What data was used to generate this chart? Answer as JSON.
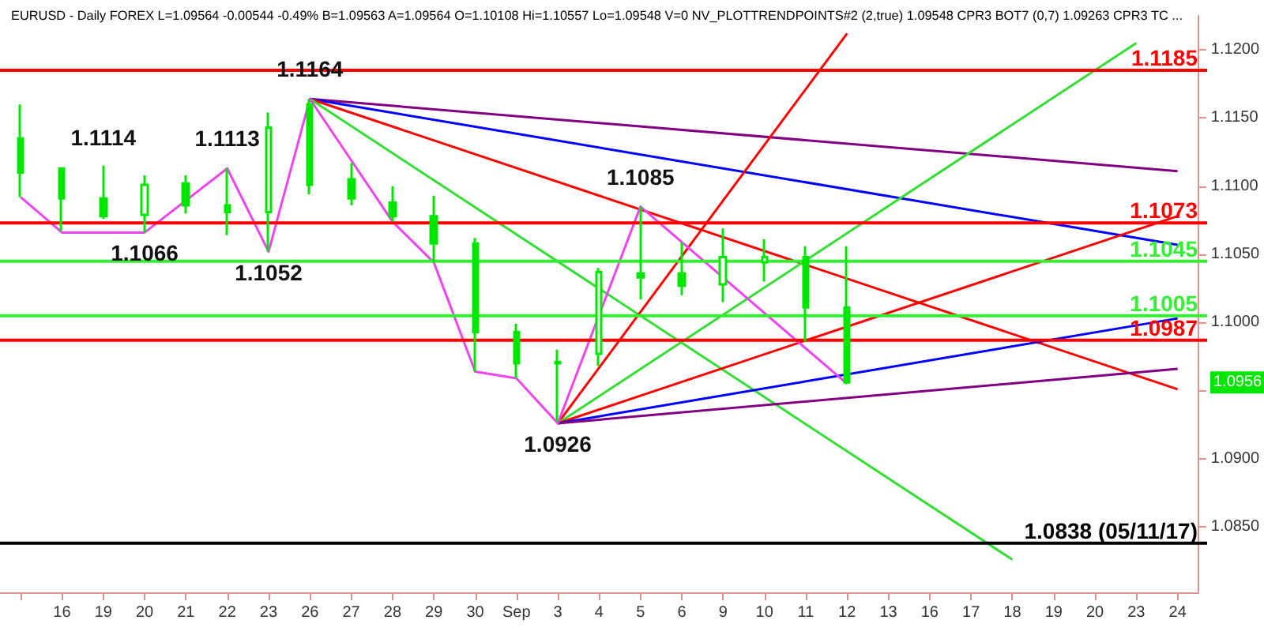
{
  "chart_data": {
    "type": "candlestick",
    "title": "EURUSD - Daily FOREX L=1.09564 -0.00544 -0.49% B=1.09563 A=1.09564 O=1.10108 Hi=1.10557 Lo=1.09548 V=0 NV_PLOTTRENDPOINTS#2 (2,true) 1.09548 CPR3 BOT7 (0,7) 1.09263 CPR3 TC ...",
    "categories": [
      null,
      "16",
      "19",
      "20",
      "21",
      "22",
      "23",
      "26",
      "27",
      "28",
      "29",
      "30",
      "Sep",
      "3",
      "4",
      "5",
      "6",
      "9",
      "10",
      "11",
      "12",
      "13",
      "16",
      "17",
      "18",
      "19",
      "20",
      "23",
      "24"
    ],
    "color": "#00e600",
    "ohlc": [
      [
        1.1135,
        1.116,
        1.1092,
        1.111
      ],
      [
        1.1113,
        1.1113,
        1.1067,
        1.1091
      ],
      [
        1.1091,
        1.1115,
        1.1076,
        1.1078
      ],
      [
        1.1079,
        1.1108,
        1.1066,
        1.1101
      ],
      [
        1.1102,
        1.1108,
        1.108,
        1.1086
      ],
      [
        1.1086,
        1.1113,
        1.1064,
        1.1081
      ],
      [
        1.1081,
        1.1154,
        1.1052,
        1.1143
      ],
      [
        1.116,
        1.1164,
        1.1094,
        1.1101
      ],
      [
        1.1105,
        1.1117,
        1.1086,
        1.1091
      ],
      [
        1.1088,
        1.11,
        1.1074,
        1.1078
      ],
      [
        1.1078,
        1.1093,
        1.1044,
        1.1058
      ],
      [
        1.1058,
        1.1062,
        1.0964,
        1.0993
      ],
      [
        1.0993,
        1.0999,
        1.0959,
        1.097
      ],
      [
        1.097,
        1.098,
        1.0927,
        1.0971
      ],
      [
        1.0977,
        1.104,
        1.0968,
        1.1037
      ],
      [
        1.1036,
        1.1085,
        1.1017,
        1.1033
      ],
      [
        1.1036,
        1.1059,
        1.102,
        1.1027
      ],
      [
        1.1028,
        1.1069,
        1.1015,
        1.1048
      ],
      [
        1.1044,
        1.1061,
        1.103,
        1.1048
      ],
      [
        1.1048,
        1.1056,
        1.0986,
        1.1011
      ],
      [
        1.1011,
        1.1056,
        1.0955,
        1.0956
      ],
      null,
      null,
      null,
      null,
      null,
      null,
      null,
      null
    ],
    "series": [
      {
        "type": "line",
        "color": "#800080",
        "values": [
          null,
          null,
          null,
          null,
          null,
          null,
          null,
          1.1164,
          null,
          null,
          null,
          null,
          null,
          null,
          null,
          null,
          null,
          null,
          null,
          null,
          null,
          null,
          null,
          null,
          null,
          null,
          null,
          null,
          1.1111
        ]
      },
      {
        "type": "line",
        "color": "#0000ff",
        "values": [
          null,
          null,
          null,
          null,
          null,
          null,
          null,
          1.1164,
          null,
          null,
          null,
          null,
          null,
          null,
          null,
          null,
          null,
          null,
          null,
          null,
          null,
          null,
          null,
          null,
          null,
          null,
          null,
          null,
          1.1057
        ]
      },
      {
        "type": "line",
        "color": "#ff0000",
        "values": [
          null,
          null,
          null,
          null,
          null,
          null,
          null,
          1.1164,
          null,
          null,
          null,
          null,
          null,
          null,
          null,
          null,
          null,
          null,
          null,
          null,
          null,
          null,
          null,
          null,
          null,
          null,
          null,
          null,
          1.0951
        ]
      },
      {
        "type": "line",
        "color": "#33dd33",
        "values": [
          null,
          null,
          null,
          null,
          null,
          null,
          null,
          1.1164,
          null,
          null,
          null,
          null,
          null,
          null,
          null,
          null,
          null,
          null,
          null,
          null,
          null,
          null,
          null,
          null,
          1.0826,
          null,
          null,
          null,
          null
        ]
      },
      {
        "type": "line",
        "color": "#ff0000",
        "values": [
          null,
          null,
          null,
          null,
          null,
          null,
          null,
          null,
          null,
          null,
          null,
          null,
          null,
          1.0926,
          null,
          null,
          null,
          null,
          null,
          null,
          1.1212,
          null,
          null,
          null,
          null,
          null,
          null,
          null,
          null
        ]
      },
      {
        "type": "line",
        "color": "#33dd33",
        "values": [
          null,
          null,
          null,
          null,
          null,
          null,
          null,
          null,
          null,
          null,
          null,
          null,
          null,
          1.0926,
          null,
          null,
          null,
          null,
          null,
          null,
          null,
          null,
          null,
          null,
          null,
          null,
          null,
          1.1205,
          null
        ]
      },
      {
        "type": "line",
        "color": "#ff0000",
        "values": [
          null,
          null,
          null,
          null,
          null,
          null,
          null,
          null,
          null,
          null,
          null,
          null,
          null,
          1.0926,
          null,
          null,
          null,
          null,
          null,
          null,
          null,
          null,
          null,
          null,
          null,
          null,
          null,
          null,
          1.1078
        ]
      },
      {
        "type": "line",
        "color": "#0000ff",
        "values": [
          null,
          null,
          null,
          null,
          null,
          null,
          null,
          null,
          null,
          null,
          null,
          null,
          null,
          1.0926,
          null,
          null,
          null,
          null,
          null,
          null,
          null,
          null,
          null,
          null,
          null,
          null,
          null,
          null,
          1.1003
        ]
      },
      {
        "type": "line",
        "color": "#800080",
        "values": [
          null,
          null,
          null,
          null,
          null,
          null,
          null,
          null,
          null,
          null,
          null,
          null,
          null,
          1.0926,
          null,
          null,
          null,
          null,
          null,
          null,
          null,
          null,
          null,
          null,
          null,
          null,
          null,
          null,
          1.0966
        ]
      },
      {
        "type": "line",
        "color": "#ee44ee",
        "values": [
          1.1092,
          1.1066,
          1.1066,
          1.1066,
          null,
          1.1113,
          1.1052,
          1.1164,
          null,
          1.1074,
          1.1044,
          1.0964,
          1.0959,
          1.0926,
          null,
          1.1085,
          null,
          null,
          null,
          null,
          1.0955,
          null,
          null,
          null,
          null,
          null,
          null,
          null,
          null
        ]
      }
    ],
    "ref_lines": [
      {
        "axis": "y",
        "value": 1.1185,
        "label": "1.1185",
        "color": "#ff0000"
      },
      {
        "axis": "y",
        "value": 1.1073,
        "label": "1.1073",
        "color": "#ff0000"
      },
      {
        "axis": "y",
        "value": 1.1045,
        "label": "1.1045",
        "color": "#33ee33"
      },
      {
        "axis": "y",
        "value": 1.1005,
        "label": "1.1005",
        "color": "#33ee33"
      },
      {
        "axis": "y",
        "value": 1.0987,
        "label": "1.0987",
        "color": "#ff0000"
      },
      {
        "axis": "y",
        "value": 1.0838,
        "label": "1.0838 (05/11/17)",
        "color": "#000000"
      }
    ],
    "annotations": [
      {
        "text": "1.1114",
        "x": "19",
        "y": 1.1114
      },
      {
        "text": "1.1066",
        "x": "20",
        "y": 1.1066
      },
      {
        "text": "1.1113",
        "x": "22",
        "y": 1.1113
      },
      {
        "text": "1.1052",
        "x": "23",
        "y": 1.1052
      },
      {
        "text": "1.1164",
        "x": "26",
        "y": 1.1164
      },
      {
        "text": "1.1085",
        "x": "5",
        "y": 1.1085
      },
      {
        "text": "1.0926",
        "x": "3",
        "y": 1.0926
      },
      "1.0956"
    ],
    "ylim": [
      1.0802,
      1.1225
    ],
    "yticks": [
      {
        "value": 1.085,
        "label": "1.0850"
      },
      {
        "value": 1.09,
        "label": "1.0900"
      },
      {
        "value": 1.095,
        "label": null
      },
      {
        "value": 1.1,
        "label": "1.1000"
      },
      {
        "value": 1.105,
        "label": "1.1050"
      },
      {
        "value": 1.11,
        "label": "1.1100"
      },
      {
        "value": 1.115,
        "label": "1.1150"
      },
      {
        "value": 1.12,
        "label": "1.1200"
      }
    ],
    "marker": "none",
    "grid": false
  }
}
